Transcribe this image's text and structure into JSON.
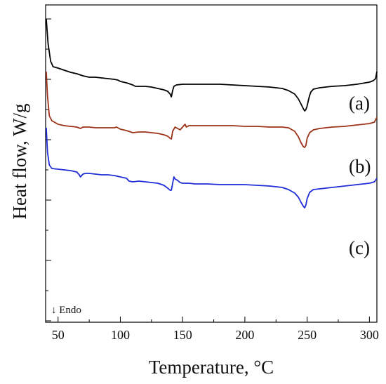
{
  "chart_data": {
    "type": "line",
    "title": "",
    "xlabel": "Temperature, °C",
    "ylabel": "Heat flow, W/g",
    "xlim": [
      40,
      306
    ],
    "x_ticks": [
      50,
      100,
      150,
      200,
      250,
      300
    ],
    "y_tick_labels_shown": false,
    "grid": false,
    "legend": "none",
    "annotation": "↓ Endo",
    "series": [
      {
        "name": "(a)",
        "color": "#000000",
        "points": [
          [
            40.5,
            20
          ],
          [
            42,
            55
          ],
          [
            44,
            80
          ],
          [
            46,
            88
          ],
          [
            50,
            90
          ],
          [
            55,
            93
          ],
          [
            60,
            96
          ],
          [
            65,
            98
          ],
          [
            70,
            101
          ],
          [
            75,
            103
          ],
          [
            80,
            103
          ],
          [
            85,
            104
          ],
          [
            90,
            105
          ],
          [
            95,
            106
          ],
          [
            98,
            107
          ],
          [
            100,
            109
          ],
          [
            105,
            111
          ],
          [
            110,
            114
          ],
          [
            112,
            116
          ],
          [
            115,
            116
          ],
          [
            120,
            116
          ],
          [
            125,
            117
          ],
          [
            130,
            119
          ],
          [
            135,
            121
          ],
          [
            138,
            123
          ],
          [
            140,
            127
          ],
          [
            141,
            131
          ],
          [
            142,
            122
          ],
          [
            143,
            116
          ],
          [
            145,
            114
          ],
          [
            150,
            113
          ],
          [
            160,
            113
          ],
          [
            170,
            113
          ],
          [
            180,
            113
          ],
          [
            190,
            114
          ],
          [
            200,
            115
          ],
          [
            210,
            116
          ],
          [
            220,
            117
          ],
          [
            230,
            119
          ],
          [
            235,
            122
          ],
          [
            240,
            127
          ],
          [
            243,
            134
          ],
          [
            245,
            141
          ],
          [
            247,
            148
          ],
          [
            248,
            151
          ],
          [
            249,
            149
          ],
          [
            250,
            144
          ],
          [
            251,
            136
          ],
          [
            252,
            129
          ],
          [
            253,
            124
          ],
          [
            255,
            120
          ],
          [
            260,
            118
          ],
          [
            270,
            116
          ],
          [
            280,
            115
          ],
          [
            290,
            113
          ],
          [
            300,
            110
          ],
          [
            303,
            108
          ],
          [
            305,
            105
          ],
          [
            306,
            95
          ]
        ]
      },
      {
        "name": "(b)",
        "color": "#9c3218",
        "points": [
          [
            40.5,
            95
          ],
          [
            41.5,
            130
          ],
          [
            43,
            158
          ],
          [
            45,
            165
          ],
          [
            48,
            168
          ],
          [
            50,
            170
          ],
          [
            55,
            172
          ],
          [
            60,
            173
          ],
          [
            65,
            174
          ],
          [
            68,
            176
          ],
          [
            70,
            174
          ],
          [
            75,
            174
          ],
          [
            80,
            175
          ],
          [
            85,
            175
          ],
          [
            90,
            175
          ],
          [
            95,
            175
          ],
          [
            97,
            174
          ],
          [
            100,
            177
          ],
          [
            105,
            179
          ],
          [
            110,
            182
          ],
          [
            115,
            181
          ],
          [
            120,
            181
          ],
          [
            125,
            182
          ],
          [
            130,
            183
          ],
          [
            135,
            185
          ],
          [
            138,
            187
          ],
          [
            140,
            190
          ],
          [
            141,
            191
          ],
          [
            142,
            180
          ],
          [
            144,
            174
          ],
          [
            146,
            176
          ],
          [
            148,
            178
          ],
          [
            150,
            174
          ],
          [
            152,
            170
          ],
          [
            153,
            174
          ],
          [
            155,
            172
          ],
          [
            160,
            172
          ],
          [
            170,
            172
          ],
          [
            180,
            172
          ],
          [
            190,
            172
          ],
          [
            200,
            173
          ],
          [
            210,
            173
          ],
          [
            220,
            174
          ],
          [
            230,
            174
          ],
          [
            235,
            175
          ],
          [
            240,
            180
          ],
          [
            243,
            188
          ],
          [
            245,
            196
          ],
          [
            247,
            202
          ],
          [
            248,
            203
          ],
          [
            249,
            200
          ],
          [
            250,
            190
          ],
          [
            252,
            182
          ],
          [
            255,
            178
          ],
          [
            260,
            176
          ],
          [
            270,
            174
          ],
          [
            280,
            173
          ],
          [
            290,
            171
          ],
          [
            300,
            169
          ],
          [
            304,
            167
          ],
          [
            306,
            160
          ]
        ]
      },
      {
        "name": "(c)",
        "color": "#1f2dd6",
        "points": [
          [
            40.5,
            175
          ],
          [
            41.5,
            210
          ],
          [
            43,
            228
          ],
          [
            45,
            233
          ],
          [
            50,
            234
          ],
          [
            55,
            235
          ],
          [
            60,
            236
          ],
          [
            65,
            238
          ],
          [
            67,
            242
          ],
          [
            68,
            245
          ],
          [
            70,
            241
          ],
          [
            72,
            240
          ],
          [
            75,
            240
          ],
          [
            80,
            241
          ],
          [
            85,
            242
          ],
          [
            90,
            242
          ],
          [
            95,
            243
          ],
          [
            100,
            245
          ],
          [
            105,
            247
          ],
          [
            107,
            251
          ],
          [
            110,
            252
          ],
          [
            115,
            251
          ],
          [
            120,
            252
          ],
          [
            125,
            253
          ],
          [
            130,
            254
          ],
          [
            135,
            257
          ],
          [
            138,
            261
          ],
          [
            140,
            264
          ],
          [
            141,
            264
          ],
          [
            142,
            254
          ],
          [
            143,
            245
          ],
          [
            144,
            248
          ],
          [
            146,
            250
          ],
          [
            148,
            253
          ],
          [
            150,
            254
          ],
          [
            155,
            254
          ],
          [
            160,
            255
          ],
          [
            170,
            255
          ],
          [
            180,
            256
          ],
          [
            190,
            256
          ],
          [
            200,
            256
          ],
          [
            210,
            257
          ],
          [
            220,
            258
          ],
          [
            230,
            260
          ],
          [
            235,
            263
          ],
          [
            240,
            268
          ],
          [
            243,
            274
          ],
          [
            245,
            281
          ],
          [
            247,
            287
          ],
          [
            248,
            289
          ],
          [
            249,
            285
          ],
          [
            250,
            276
          ],
          [
            252,
            267
          ],
          [
            255,
            263
          ],
          [
            260,
            262
          ],
          [
            270,
            260
          ],
          [
            280,
            258
          ],
          [
            290,
            256
          ],
          [
            300,
            254
          ],
          [
            304,
            252
          ],
          [
            306,
            247
          ]
        ]
      }
    ]
  }
}
